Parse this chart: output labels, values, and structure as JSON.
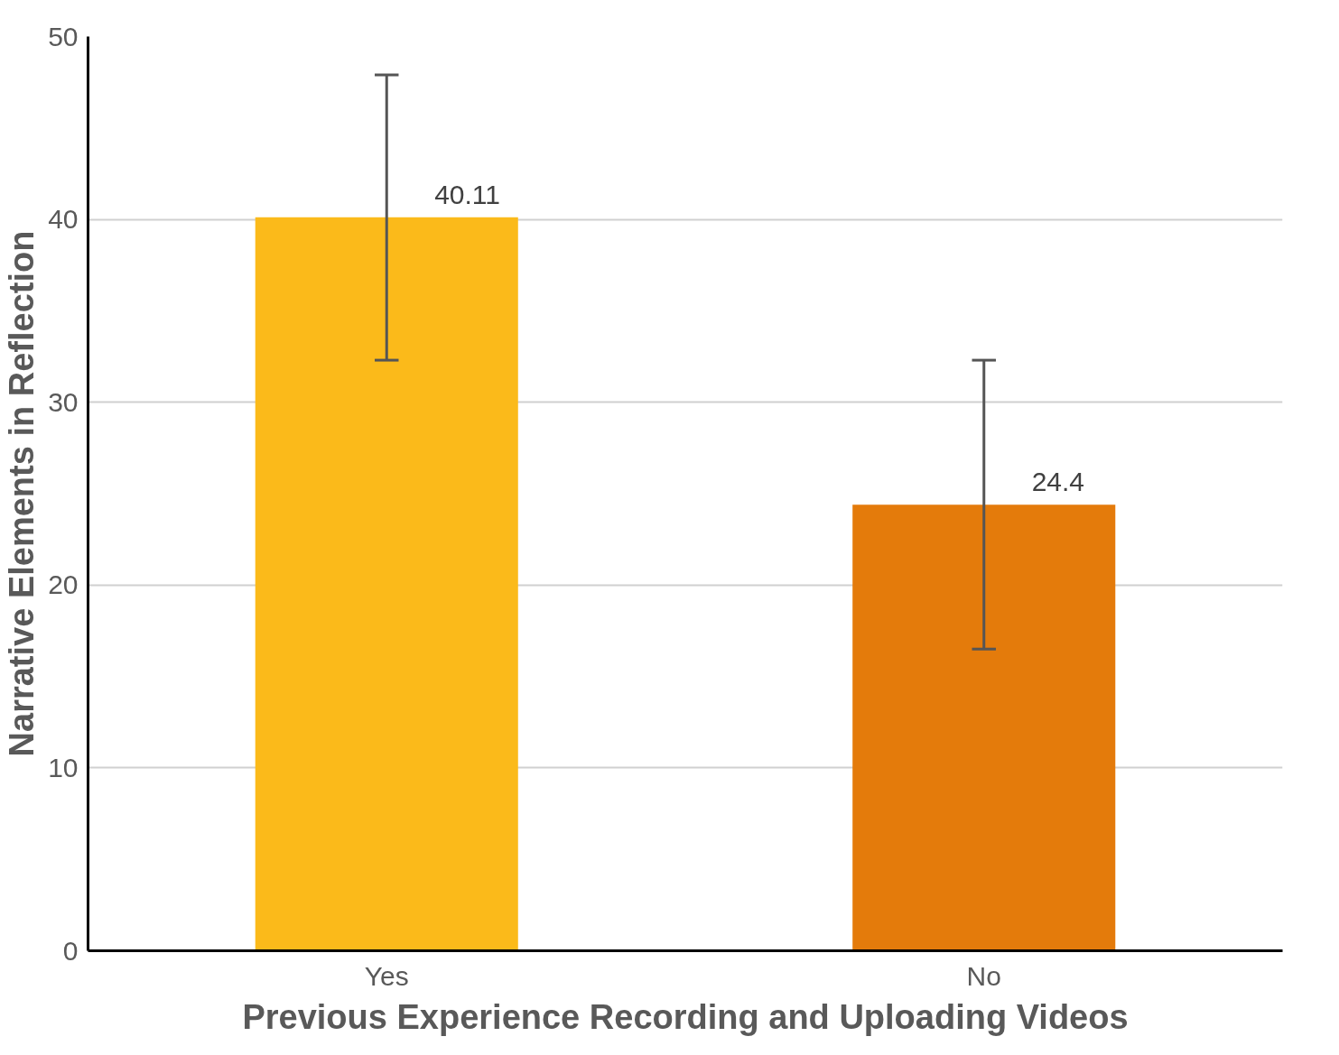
{
  "chart_data": {
    "type": "bar",
    "xlabel": "Previous Experience Recording and Uploading Videos",
    "ylabel": "Narrative Elements in Reflection",
    "categories": [
      "Yes",
      "No"
    ],
    "values": [
      40.11,
      24.4
    ],
    "colors": [
      "#fbba1a",
      "#e47b0b"
    ],
    "errors": [
      [
        32.3,
        47.9
      ],
      [
        16.5,
        32.3
      ]
    ],
    "data_labels": true,
    "ylim": [
      0,
      50
    ],
    "yticks": [
      0,
      10,
      20,
      30,
      40,
      50
    ],
    "grid": "y"
  }
}
